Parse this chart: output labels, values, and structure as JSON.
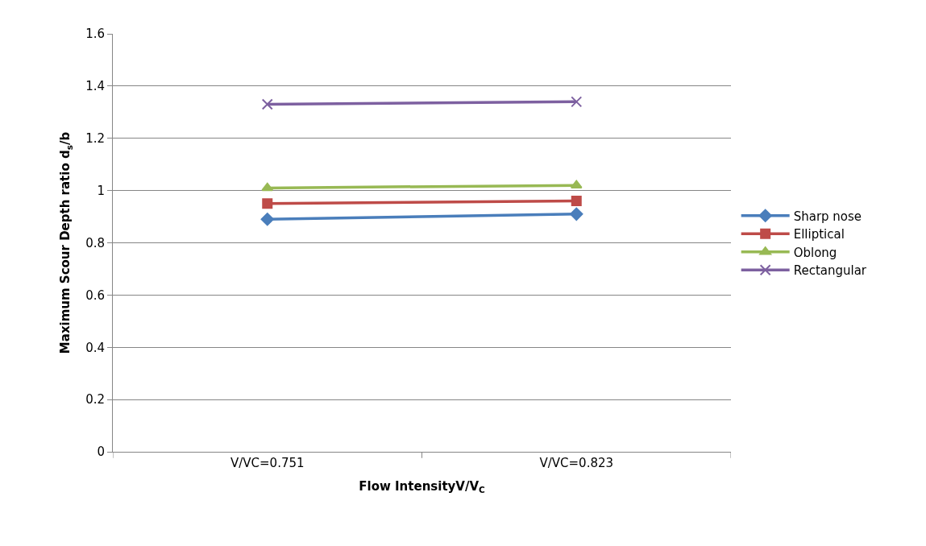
{
  "chart_data": {
    "type": "line",
    "xlabel": "Flow IntensityV/V$_{C}$",
    "ylabel": "Maximum Scour Depth ratio d$_{s}$/b",
    "categories": [
      "V/VC=0.751",
      "V/VC=0.823"
    ],
    "series": [
      {
        "name": "Sharp nose",
        "color": "#4a7ebb",
        "values": [
          0.89,
          0.91
        ],
        "marker": "diamond"
      },
      {
        "name": "Elliptical",
        "color": "#be4b48",
        "values": [
          0.95,
          0.96
        ],
        "marker": "square"
      },
      {
        "name": "Oblong",
        "color": "#98b954",
        "values": [
          1.01,
          1.02
        ],
        "marker": "triangle"
      },
      {
        "name": "Rectangular",
        "color": "#7d60a0",
        "values": [
          1.33,
          1.34
        ],
        "marker": "cross"
      }
    ],
    "ylim": [
      0,
      1.6
    ],
    "yticks": [
      0,
      0.2,
      0.4,
      0.6,
      0.8,
      1,
      1.2,
      1.4,
      1.6
    ],
    "grid": "y",
    "legend": "right",
    "line_style": "solid"
  }
}
